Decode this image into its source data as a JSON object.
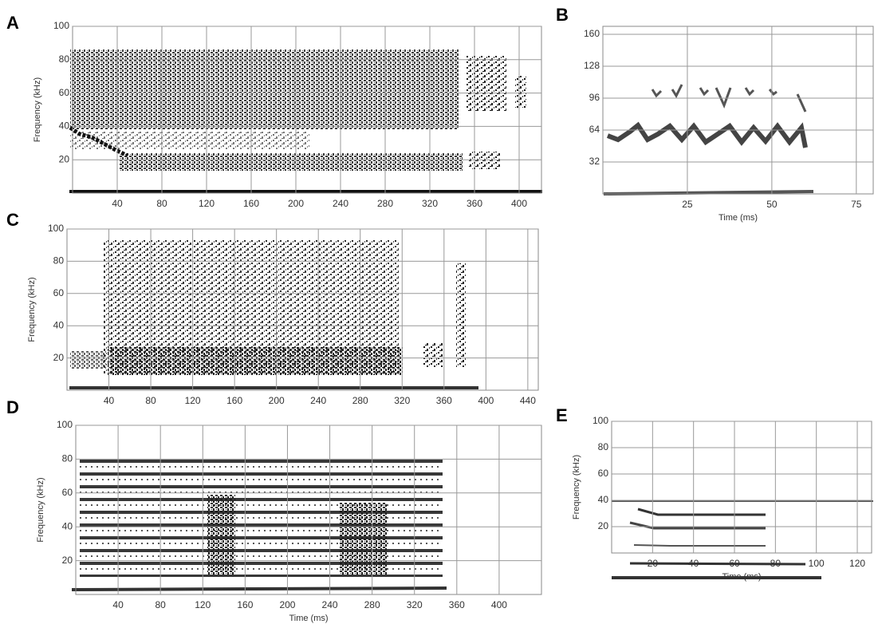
{
  "panels": [
    {
      "label": "A",
      "y_label": "Frequency (kHz)",
      "xlim": [
        0,
        420
      ],
      "ylim": [
        0,
        100
      ],
      "xticks": [
        40,
        80,
        120,
        160,
        200,
        240,
        280,
        320,
        360,
        400
      ],
      "yticks": [
        20,
        40,
        60,
        80,
        100
      ]
    },
    {
      "label": "B",
      "x_label": "Time (ms)",
      "xlim": [
        0,
        80
      ],
      "ylim": [
        0,
        168
      ],
      "xticks": [
        25,
        50,
        75
      ],
      "yticks": [
        32,
        64,
        96,
        128,
        160
      ]
    },
    {
      "label": "C",
      "y_label": "Frequency (kHz)",
      "xlim": [
        0,
        450
      ],
      "ylim": [
        0,
        100
      ],
      "xticks": [
        40,
        80,
        120,
        160,
        200,
        240,
        280,
        320,
        360,
        400,
        440
      ],
      "yticks": [
        20,
        40,
        60,
        80,
        100
      ]
    },
    {
      "label": "D",
      "x_label": "Time (ms)",
      "y_label": "Frequency (kHz)",
      "xlim": [
        0,
        440
      ],
      "ylim": [
        0,
        100
      ],
      "xticks": [
        40,
        80,
        120,
        160,
        200,
        240,
        280,
        320,
        360,
        400
      ],
      "yticks": [
        20,
        40,
        60,
        80,
        100
      ]
    },
    {
      "label": "E",
      "x_label": "Time (ms)",
      "y_label": "Frequency (kHz)",
      "xlim": [
        0,
        127
      ],
      "ylim": [
        0,
        100
      ],
      "xticks": [
        20,
        40,
        60,
        80,
        100,
        120
      ],
      "yticks": [
        20,
        40,
        60,
        80,
        100
      ]
    }
  ]
}
